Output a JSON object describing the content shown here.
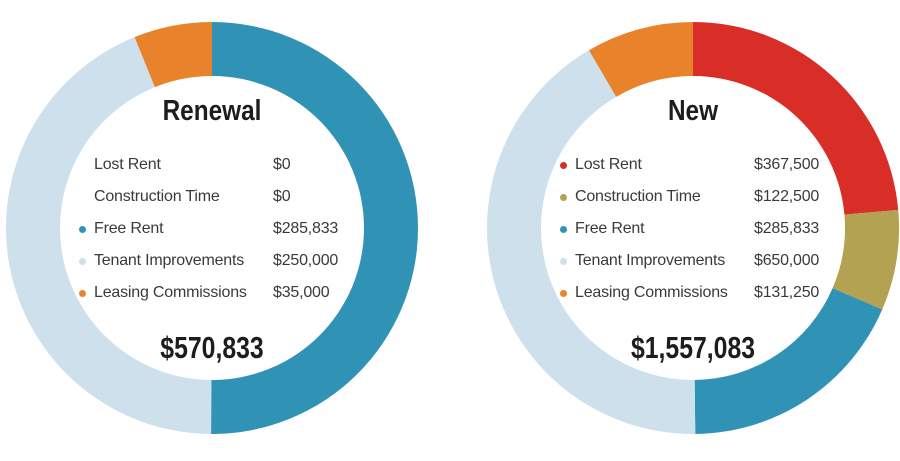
{
  "chart_data": [
    {
      "type": "pie",
      "variant": "donut",
      "title": "Renewal",
      "categories": [
        "Lost Rent",
        "Construction Time",
        "Free Rent",
        "Tenant Improvements",
        "Leasing Commissions"
      ],
      "values": [
        0,
        0,
        285833,
        250000,
        35000
      ],
      "value_labels": [
        "$0",
        "$0",
        "$285,833",
        "$250,000",
        "$35,000"
      ],
      "total": 570833,
      "total_label": "$570,833",
      "colors": [
        "#d92d27",
        "#b3a251",
        "#3093b5",
        "#cde0ec",
        "#e8832c"
      ],
      "start_angle_deg": 0,
      "direction": "clockwise",
      "legend_position": "center-inside"
    },
    {
      "type": "pie",
      "variant": "donut",
      "title": "New",
      "categories": [
        "Lost Rent",
        "Construction Time",
        "Free Rent",
        "Tenant Improvements",
        "Leasing Commissions"
      ],
      "values": [
        367500,
        122500,
        285833,
        650000,
        131250
      ],
      "value_labels": [
        "$367,500",
        "$122,500",
        "$285,833",
        "$650,000",
        "$131,250"
      ],
      "total": 1557083,
      "total_label": "$1,557,083",
      "colors": [
        "#d92d27",
        "#b3a251",
        "#3093b5",
        "#cde0ec",
        "#e8832c"
      ],
      "start_angle_deg": 0,
      "direction": "clockwise",
      "legend_position": "center-inside"
    }
  ]
}
